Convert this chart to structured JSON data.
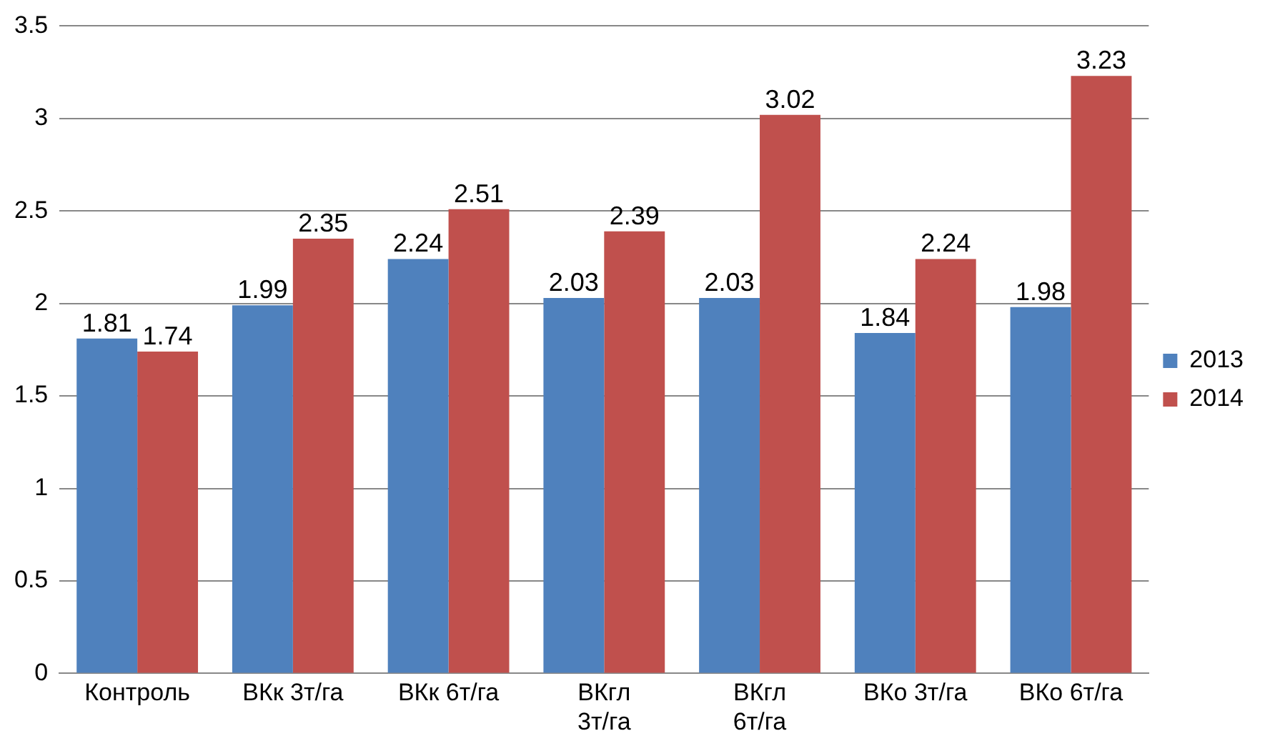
{
  "chart_data": {
    "type": "bar",
    "categories": [
      "Контроль",
      "ВКк 3т/га",
      "ВКк 6т/га",
      "ВКгл 3т/га",
      "ВКгл 6т/га",
      "ВКо 3т/га",
      "ВКо 6т/га"
    ],
    "series": [
      {
        "name": "2013",
        "color": "#4f81bd",
        "values": [
          1.81,
          1.99,
          2.24,
          2.03,
          2.03,
          1.84,
          1.98
        ]
      },
      {
        "name": "2014",
        "color": "#c0504d",
        "values": [
          1.74,
          2.35,
          2.51,
          2.39,
          3.02,
          2.24,
          3.23
        ]
      }
    ],
    "ylim": [
      0,
      3.5
    ],
    "yticks": [
      0,
      0.5,
      1,
      1.5,
      2,
      2.5,
      3,
      3.5
    ],
    "grid": "y",
    "legend": "right",
    "data_labels": true
  }
}
